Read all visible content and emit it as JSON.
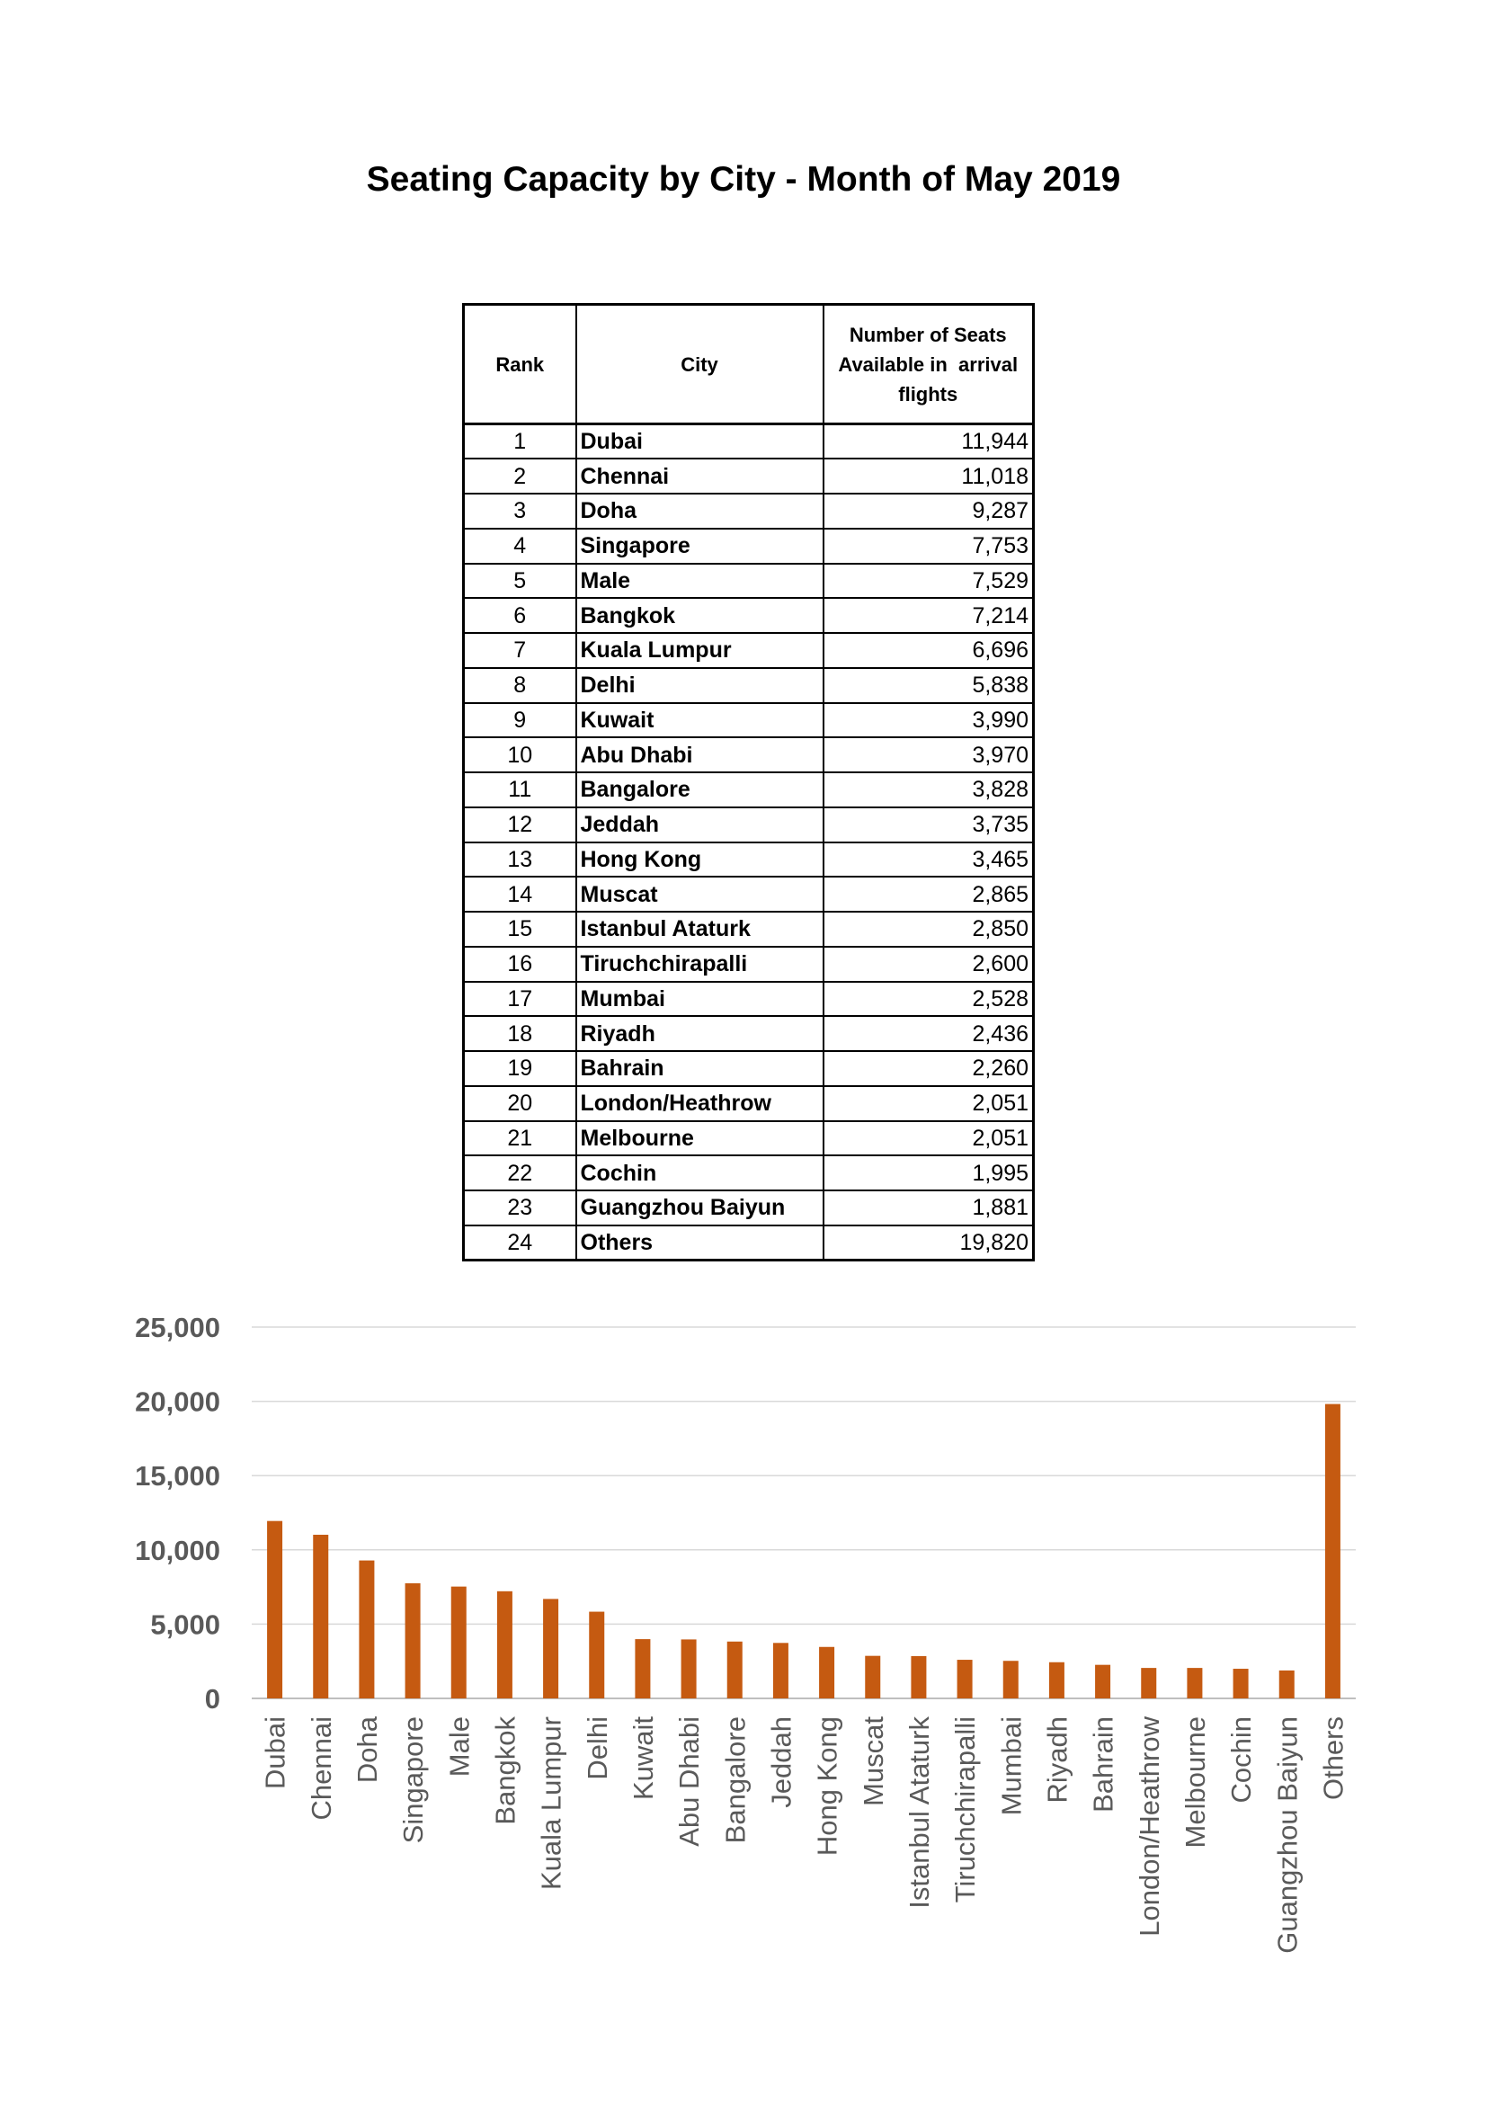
{
  "title": "Seating Capacity by City - Month of May 2019",
  "table": {
    "headers": {
      "rank": "Rank",
      "city": "City",
      "seats_line1": "Number of Seats",
      "seats_line2": "Available in  arrival",
      "seats_line3": "flights"
    },
    "rows": [
      {
        "rank": "1",
        "city": "Dubai",
        "seats": "11,944"
      },
      {
        "rank": "2",
        "city": "Chennai",
        "seats": "11,018"
      },
      {
        "rank": "3",
        "city": "Doha",
        "seats": "9,287"
      },
      {
        "rank": "4",
        "city": "Singapore",
        "seats": "7,753"
      },
      {
        "rank": "5",
        "city": "Male",
        "seats": "7,529"
      },
      {
        "rank": "6",
        "city": "Bangkok",
        "seats": "7,214"
      },
      {
        "rank": "7",
        "city": "Kuala Lumpur",
        "seats": "6,696"
      },
      {
        "rank": "8",
        "city": "Delhi",
        "seats": "5,838"
      },
      {
        "rank": "9",
        "city": "Kuwait",
        "seats": "3,990"
      },
      {
        "rank": "10",
        "city": "Abu Dhabi",
        "seats": "3,970"
      },
      {
        "rank": "11",
        "city": "Bangalore",
        "seats": "3,828"
      },
      {
        "rank": "12",
        "city": "Jeddah",
        "seats": "3,735"
      },
      {
        "rank": "13",
        "city": "Hong Kong",
        "seats": "3,465"
      },
      {
        "rank": "14",
        "city": "Muscat",
        "seats": "2,865"
      },
      {
        "rank": "15",
        "city": "Istanbul Ataturk",
        "seats": "2,850"
      },
      {
        "rank": "16",
        "city": "Tiruchchirapalli",
        "seats": "2,600"
      },
      {
        "rank": "17",
        "city": "Mumbai",
        "seats": "2,528"
      },
      {
        "rank": "18",
        "city": "Riyadh",
        "seats": "2,436"
      },
      {
        "rank": "19",
        "city": "Bahrain",
        "seats": "2,260"
      },
      {
        "rank": "20",
        "city": "London/Heathrow",
        "seats": "2,051"
      },
      {
        "rank": "21",
        "city": "Melbourne",
        "seats": "2,051"
      },
      {
        "rank": "22",
        "city": "Cochin",
        "seats": "1,995"
      },
      {
        "rank": "23",
        "city": "Guangzhou Baiyun",
        "seats": "1,881"
      },
      {
        "rank": "24",
        "city": "Others",
        "seats": "19,820"
      }
    ]
  },
  "chart_data": {
    "type": "bar",
    "title": "",
    "xlabel": "",
    "ylabel": "",
    "categories": [
      "Dubai",
      "Chennai",
      "Doha",
      "Singapore",
      "Male",
      "Bangkok",
      "Kuala Lumpur",
      "Delhi",
      "Kuwait",
      "Abu Dhabi",
      "Bangalore",
      "Jeddah",
      "Hong Kong",
      "Muscat",
      "Istanbul Ataturk",
      "Tiruchchirapalli",
      "Mumbai",
      "Riyadh",
      "Bahrain",
      "London/Heathrow",
      "Melbourne",
      "Cochin",
      "Guangzhou Baiyun",
      "Others"
    ],
    "values": [
      11944,
      11018,
      9287,
      7753,
      7529,
      7214,
      6696,
      5838,
      3990,
      3970,
      3828,
      3735,
      3465,
      2865,
      2850,
      2600,
      2528,
      2436,
      2260,
      2051,
      2051,
      1995,
      1881,
      19820
    ],
    "ylim": [
      0,
      25000
    ],
    "yticks": [
      0,
      5000,
      10000,
      15000,
      20000,
      25000
    ],
    "ytick_labels": [
      "0",
      "5,000",
      "10,000",
      "15,000",
      "20,000",
      "25,000"
    ],
    "grid": true,
    "legend": "none",
    "colors": {
      "bar": "#C55A11",
      "grid": "#d9d9d9",
      "axis_text": "#595959"
    }
  }
}
